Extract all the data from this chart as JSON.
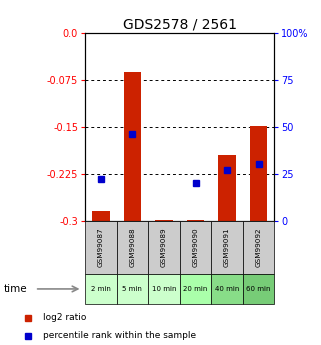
{
  "title": "GDS2578 / 2561",
  "samples": [
    "GSM99087",
    "GSM99088",
    "GSM99089",
    "GSM99090",
    "GSM99091",
    "GSM99092"
  ],
  "time_labels": [
    "2 min",
    "5 min",
    "10 min",
    "20 min",
    "40 min",
    "60 min"
  ],
  "log2_bar_values": [
    -0.285,
    -0.062,
    -0.298,
    -0.298,
    -0.195,
    -0.148
  ],
  "percentile_rank": [
    22.0,
    46.0,
    null,
    20.0,
    27.0,
    30.0
  ],
  "ylim_left": [
    -0.3,
    0.0
  ],
  "ylim_right": [
    0,
    100
  ],
  "yticks_left": [
    0.0,
    -0.075,
    -0.15,
    -0.225,
    -0.3
  ],
  "yticks_right": [
    0,
    25,
    50,
    75,
    100
  ],
  "bar_color": "#cc2200",
  "percentile_color": "#0000cc",
  "bg_color_samples": "#cccccc",
  "time_bg_colors": [
    "#ccffcc",
    "#ccffcc",
    "#ccffcc",
    "#aaffaa",
    "#88dd88",
    "#77cc77"
  ],
  "legend_bar_label": "log2 ratio",
  "legend_pct_label": "percentile rank within the sample",
  "title_fontsize": 10,
  "tick_fontsize": 7,
  "grid_lines": [
    -0.075,
    -0.15,
    -0.225
  ]
}
